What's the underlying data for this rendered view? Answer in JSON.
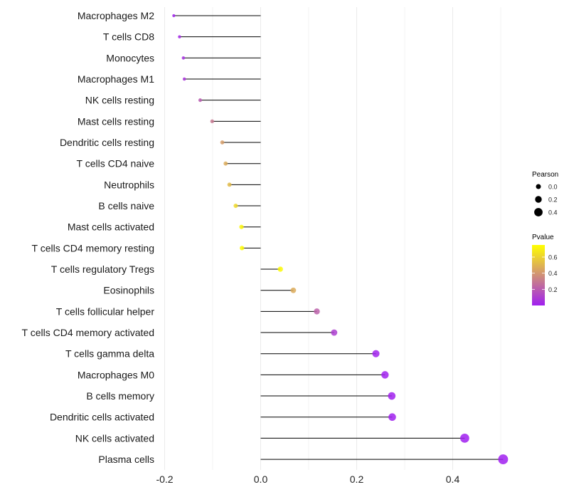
{
  "chart_data": {
    "type": "lollipop",
    "title": "",
    "xlabel": "",
    "ylabel": "",
    "xlim": [
      -0.2,
      0.5
    ],
    "x_ticks": [
      -0.2,
      0.0,
      0.2,
      0.4
    ],
    "x_tick_labels": [
      "-0.2",
      "0.0",
      "0.2",
      "0.4"
    ],
    "grid": true,
    "categories": [
      "Macrophages M2",
      "T cells CD8",
      "Monocytes",
      "Macrophages M1",
      "NK cells resting",
      "Mast cells resting",
      "Dendritic cells resting",
      "T cells CD4 naive",
      "Neutrophils",
      "B cells naive",
      "Mast cells activated",
      "T cells CD4 memory resting",
      "T cells regulatory  Tregs",
      "Eosinophils",
      "T cells follicular helper",
      "T cells CD4 memory activated",
      "T cells gamma delta",
      "Macrophages M0",
      "B cells memory",
      "Dendritic cells activated",
      "NK cells activated",
      "Plasma cells"
    ],
    "pearson": [
      -0.181,
      -0.169,
      -0.161,
      -0.159,
      -0.126,
      -0.101,
      -0.08,
      -0.073,
      -0.065,
      -0.052,
      -0.04,
      -0.039,
      0.041,
      0.068,
      0.117,
      0.153,
      0.24,
      0.259,
      0.273,
      0.274,
      0.425,
      0.505
    ],
    "pvalue": [
      0.01,
      0.03,
      0.05,
      0.07,
      0.2,
      0.3,
      0.42,
      0.47,
      0.52,
      0.62,
      0.72,
      0.74,
      0.73,
      0.47,
      0.22,
      0.1,
      0.01,
      0.006,
      0.004,
      0.003,
      0.0001,
      1e-05
    ],
    "legend": {
      "position": "right",
      "size_title": "Pearson",
      "size_breaks": [
        0.0,
        0.2,
        0.4
      ],
      "size_labels": [
        "0.0",
        "0.2",
        "0.4"
      ],
      "color_title": "Pvalue",
      "color_breaks": [
        0.2,
        0.4,
        0.6
      ],
      "color_labels": [
        "0.2",
        "0.4",
        "0.6"
      ],
      "color_range": [
        0.0,
        0.75
      ],
      "color_low": "#a020f0",
      "color_high": "#ffff00"
    }
  }
}
